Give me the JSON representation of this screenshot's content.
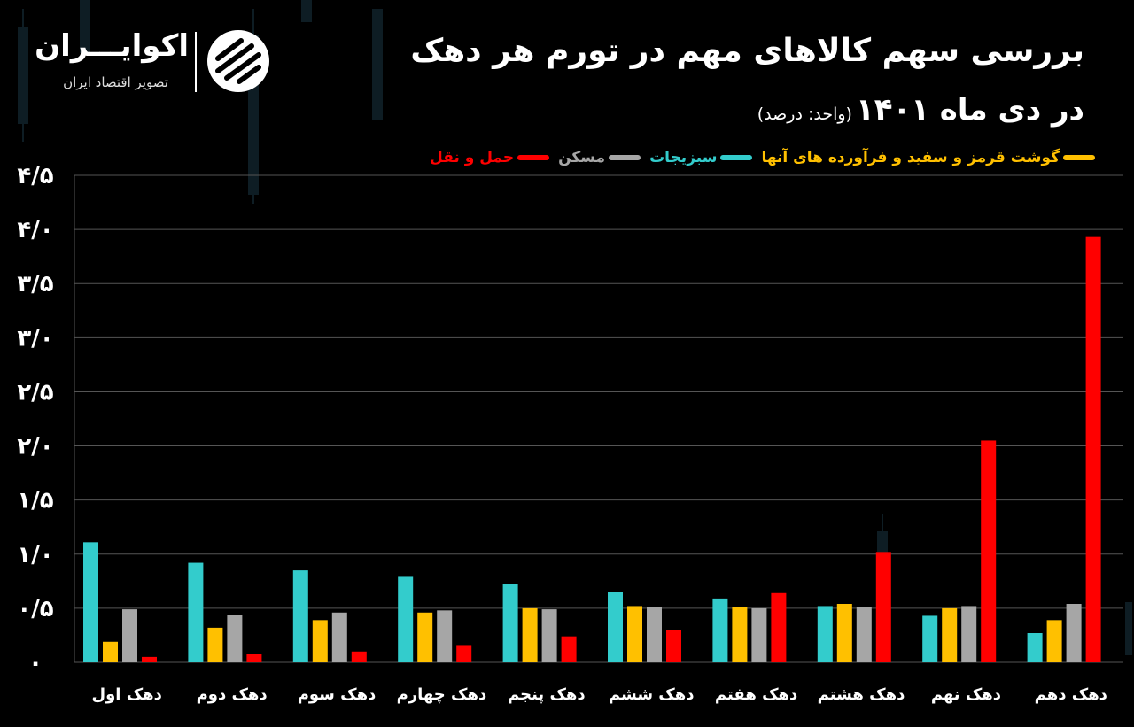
{
  "title": "بررسی سهم کالاهای مهم در تورم هر دهک",
  "subtitle": "در دی ماه ۱۴۰۱",
  "unit": "(واحد: درصد)",
  "brand": {
    "name": "اکوایـــران",
    "tagline": "تصویر اقتصاد ایران"
  },
  "colors": {
    "meat": "#FFC000",
    "veg": "#33CCCC",
    "housing": "#A6A6A6",
    "transport": "#FF0000",
    "grid": "#555555"
  },
  "chart_data": {
    "type": "bar",
    "categories": [
      "دهک اول",
      "دهک دوم",
      "دهک سوم",
      "دهک چهارم",
      "دهک پنجم",
      "دهک ششم",
      "دهک هفتم",
      "دهک هشتم",
      "دهک نهم",
      "دهک دهم"
    ],
    "series": [
      {
        "name": "سبزیجات",
        "color": "#33CCCC",
        "values": [
          1.11,
          0.92,
          0.85,
          0.79,
          0.72,
          0.65,
          0.59,
          0.52,
          0.43,
          0.27
        ]
      },
      {
        "name": "گوشت قرمز و سفید و فرآورده های آنها",
        "color": "#FFC000",
        "values": [
          0.19,
          0.32,
          0.39,
          0.46,
          0.5,
          0.52,
          0.51,
          0.54,
          0.5,
          0.39
        ]
      },
      {
        "name": "مسکن",
        "color": "#A6A6A6",
        "values": [
          0.49,
          0.44,
          0.46,
          0.48,
          0.49,
          0.51,
          0.5,
          0.51,
          0.52,
          0.54
        ]
      },
      {
        "name": "حمل و نقل",
        "color": "#FF0000",
        "values": [
          0.05,
          0.08,
          0.1,
          0.16,
          0.24,
          0.3,
          0.64,
          1.02,
          2.05,
          3.93
        ]
      }
    ],
    "legend_order": [
      "گوشت قرمز و سفید و فرآورده های آنها",
      "سبزیجات",
      "مسکن",
      "حمل و نقل"
    ],
    "ylim": [
      0,
      4.5
    ],
    "ytick_labels": [
      "۰",
      "۰/۵",
      "۱/۰",
      "۱/۵",
      "۲/۰",
      "۲/۵",
      "۳/۰",
      "۳/۵",
      "۴/۰",
      "۴/۵"
    ],
    "xlabel": "",
    "ylabel": "",
    "grid": true,
    "legend_position": "top"
  }
}
